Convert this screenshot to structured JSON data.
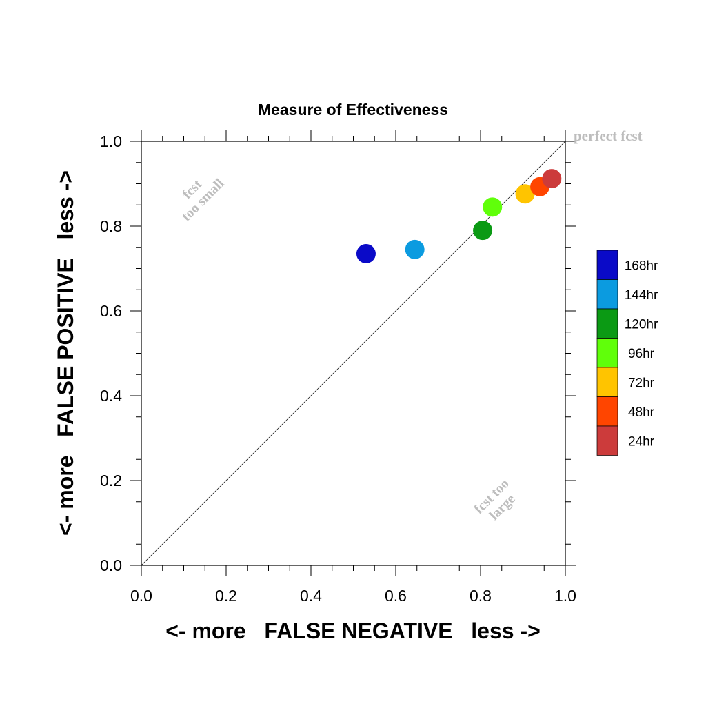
{
  "chart_data": {
    "type": "scatter",
    "title": "Measure of Effectiveness",
    "xlabel": "<- more   FALSE NEGATIVE   less ->",
    "ylabel": "<- more   FALSE POSITIVE   less ->",
    "xlim": [
      0.0,
      1.0
    ],
    "ylim": [
      0.0,
      1.0
    ],
    "x_ticks": [
      "0.0",
      "0.2",
      "0.4",
      "0.6",
      "0.8",
      "1.0"
    ],
    "y_ticks": [
      "0.0",
      "0.2",
      "0.4",
      "0.6",
      "0.8",
      "1.0"
    ],
    "diagonal_line": true,
    "grid": false,
    "legend_position": "right",
    "series": [
      {
        "name": "168hr",
        "color": "#0a0ac8",
        "x": 0.53,
        "y": 0.735
      },
      {
        "name": "144hr",
        "color": "#0b9be0",
        "x": 0.645,
        "y": 0.745
      },
      {
        "name": "120hr",
        "color": "#0b9a14",
        "x": 0.805,
        "y": 0.79
      },
      {
        "name": "96hr",
        "color": "#60ff0a",
        "x": 0.828,
        "y": 0.845
      },
      {
        "name": "72hr",
        "color": "#ffc400",
        "x": 0.905,
        "y": 0.876
      },
      {
        "name": "48hr",
        "color": "#ff4500",
        "x": 0.94,
        "y": 0.893
      },
      {
        "name": "24hr",
        "color": "#cc3b3b",
        "x": 0.968,
        "y": 0.912
      }
    ],
    "annotations": {
      "perfect": "perfect fcst",
      "too_small_line1": "fcst",
      "too_small_line2": "too small",
      "too_large_line1": "fcst too",
      "too_large_line2": "large"
    },
    "annotation_color": "#bdbdbd"
  }
}
